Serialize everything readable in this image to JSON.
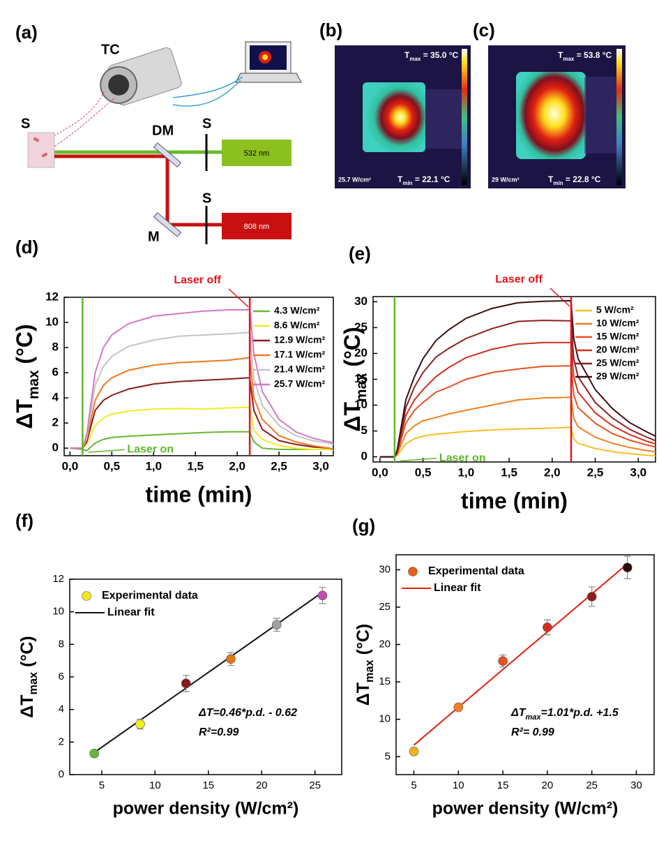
{
  "panel_labels": [
    "(a)",
    "(b)",
    "(c)",
    "(d)",
    "(e)",
    "(f)",
    "(g)"
  ],
  "setup": {
    "camera": "TC",
    "sample": "S",
    "dichroic": "DM",
    "shutter_green": "S",
    "laser_green": "532 nm",
    "shutter_red": "S",
    "mirror": "M",
    "laser_red": "808 nm"
  },
  "thermal_images": [
    {
      "tmax": [
        "T",
        "max",
        " = 35.0 °C"
      ],
      "tmin": [
        "T",
        "min",
        " = 22.1 °C"
      ],
      "power": "25.7 W/cm²"
    },
    {
      "tmax": [
        "T",
        "max",
        " = 53.8 °C"
      ],
      "tmin": [
        "T",
        "min",
        " = 22.8 °C"
      ],
      "power": "29 W/cm²"
    }
  ],
  "chart_data": [
    {
      "type": "line",
      "xlabel": "time (min)",
      "ylabel": [
        "ΔT",
        "max",
        " (°C)"
      ],
      "xlim": [
        -0.07,
        3.15
      ],
      "ylim": [
        -0.6,
        12
      ],
      "xticks": [
        {
          "value": 0,
          "label": "0,0"
        },
        {
          "value": 0.5,
          "label": "0,5"
        },
        {
          "value": 1,
          "label": "1,0"
        },
        {
          "value": 1.5,
          "label": "1,5"
        },
        {
          "value": 2,
          "label": "2,0"
        },
        {
          "value": 2.5,
          "label": "2,5"
        },
        {
          "value": 3,
          "label": "3,0"
        }
      ],
      "yticks": [
        0,
        2,
        4,
        6,
        8,
        10,
        12
      ],
      "legend": "upper right",
      "x": [
        0,
        0.15,
        0.2,
        0.3,
        0.4,
        0.5,
        0.7,
        1.0,
        1.3,
        1.6,
        1.9,
        2.15,
        2.2,
        2.3,
        2.5,
        2.7,
        2.9,
        3.1,
        3.15
      ],
      "series": [
        {
          "name": "4.3 W/cm²",
          "color": "#66b834",
          "values": [
            0,
            -0.1,
            -0.2,
            0.4,
            0.7,
            0.85,
            0.95,
            1.05,
            1.15,
            1.25,
            1.3,
            1.3,
            0.5,
            0.0,
            -0.1,
            -0.1,
            -0.1,
            -0.1,
            -0.15
          ]
        },
        {
          "name": "8.6 W/cm²",
          "color": "#eeee22",
          "values": [
            0,
            0,
            0.3,
            1.8,
            2.4,
            2.7,
            2.95,
            3.1,
            3.15,
            3.1,
            3.2,
            3.25,
            1.4,
            0.7,
            0.2,
            0.0,
            -0.1,
            -0.1,
            -0.15
          ]
        },
        {
          "name": "12.9 W/cm²",
          "color": "#8b1a1a",
          "values": [
            0,
            0,
            0.5,
            3.0,
            3.8,
            4.2,
            4.7,
            5.1,
            5.3,
            5.4,
            5.5,
            5.6,
            3.0,
            1.5,
            0.6,
            0.3,
            0.1,
            0,
            -0.1
          ]
        },
        {
          "name": "17.1 W/cm²",
          "color": "#f07820",
          "values": [
            0,
            0,
            0.7,
            3.8,
            5.0,
            5.6,
            6.2,
            6.6,
            6.8,
            6.9,
            7.0,
            7.2,
            4.0,
            2.3,
            1.0,
            0.5,
            0.2,
            0.0,
            -0.1
          ]
        },
        {
          "name": "21.4 W/cm²",
          "color": "#c4c4c4",
          "values": [
            0,
            0,
            0.9,
            5.0,
            6.5,
            7.3,
            8.1,
            8.6,
            8.9,
            9.0,
            9.1,
            9.2,
            5.5,
            3.4,
            1.8,
            1.0,
            0.6,
            0.4,
            0.3
          ]
        },
        {
          "name": "25.7 W/cm²",
          "color": "#d478c4",
          "values": [
            0,
            0,
            1.1,
            6.0,
            8.0,
            9.0,
            9.9,
            10.5,
            10.7,
            10.9,
            11.0,
            11.0,
            7.5,
            4.5,
            2.3,
            1.3,
            0.8,
            0.5,
            0.4
          ]
        }
      ],
      "markers": [
        {
          "x": 0.15,
          "label": "Laser on",
          "color": "#5cb82c"
        },
        {
          "x": 2.15,
          "label": "Laser off",
          "color": "#e8141c"
        }
      ]
    },
    {
      "type": "line",
      "xlabel": "time (min)",
      "ylabel": [
        "ΔT",
        "max",
        " (°C)"
      ],
      "xlim": [
        -0.08,
        3.2
      ],
      "ylim": [
        -1,
        31
      ],
      "xticks": [
        {
          "value": 0,
          "label": "0,0"
        },
        {
          "value": 0.5,
          "label": "0,5"
        },
        {
          "value": 1,
          "label": "1,0"
        },
        {
          "value": 1.5,
          "label": "1,5"
        },
        {
          "value": 2,
          "label": "2,0"
        },
        {
          "value": 2.5,
          "label": "2,5"
        },
        {
          "value": 3,
          "label": "3,0"
        }
      ],
      "yticks": [
        0,
        5,
        10,
        15,
        20,
        25,
        30
      ],
      "legend": "upper right",
      "x": [
        0,
        0.17,
        0.2,
        0.3,
        0.4,
        0.5,
        0.65,
        0.8,
        1.0,
        1.3,
        1.6,
        1.9,
        2.2,
        2.22,
        2.25,
        2.3,
        2.5,
        2.7,
        2.9,
        3.1,
        3.2
      ],
      "series": [
        {
          "name": "5 W/cm²",
          "color": "#f5c020",
          "values": [
            0,
            0,
            0.3,
            2.5,
            3.5,
            4.0,
            4.4,
            4.6,
            4.9,
            5.2,
            5.4,
            5.5,
            5.7,
            5.7,
            3.5,
            2.6,
            1.6,
            1.0,
            0.6,
            0.3,
            0.2
          ]
        },
        {
          "name": "10 W/cm²",
          "color": "#f08020",
          "values": [
            0,
            0,
            0.5,
            4.5,
            6.0,
            7.0,
            7.6,
            8.3,
            9.0,
            10.0,
            11.0,
            11.4,
            11.5,
            11.5,
            7.5,
            5.8,
            3.8,
            2.6,
            1.8,
            1.2,
            1.0
          ]
        },
        {
          "name": "15 W/cm²",
          "color": "#e85020",
          "values": [
            0,
            0,
            0.7,
            6.5,
            9.0,
            10.5,
            12.5,
            13.5,
            15.0,
            16.3,
            17.0,
            17.5,
            17.6,
            17.6,
            12.0,
            9.5,
            6.5,
            4.5,
            3.2,
            2.3,
            1.9
          ]
        },
        {
          "name": "20 W/cm²",
          "color": "#d03020",
          "values": [
            0,
            0,
            0.9,
            8.0,
            11.0,
            13.0,
            15.5,
            17.3,
            19.2,
            20.8,
            21.8,
            22.1,
            22.1,
            22.1,
            15.5,
            12.5,
            8.5,
            6.0,
            4.3,
            3.0,
            2.5
          ]
        },
        {
          "name": "25 W/cm²",
          "color": "#8b2020",
          "values": [
            0,
            0,
            1.1,
            9.5,
            13.5,
            16.3,
            19.3,
            21.0,
            22.9,
            24.8,
            26.2,
            26.4,
            26.3,
            26.3,
            19.0,
            15.5,
            10.5,
            7.5,
            5.3,
            3.8,
            3.1
          ]
        },
        {
          "name": "29 W/cm²",
          "color": "#3a1010",
          "values": [
            0,
            0,
            1.3,
            11.0,
            15.5,
            19.0,
            22.5,
            24.6,
            26.8,
            28.7,
            29.8,
            30.1,
            30.2,
            30.0,
            23.0,
            19.0,
            13.0,
            9.3,
            6.6,
            4.8,
            4.0
          ]
        }
      ],
      "markers": [
        {
          "x": 0.17,
          "label": "Laser on",
          "color": "#5cb82c"
        },
        {
          "x": 2.22,
          "label": "Laser off",
          "color": "#e8141c"
        }
      ]
    },
    {
      "type": "scatter",
      "xlabel": "power density (W/cm²)",
      "ylabel": [
        "ΔT",
        "max",
        " (°C)"
      ],
      "xlim": [
        2,
        27.5
      ],
      "ylim": [
        0,
        12
      ],
      "xticks": [
        5,
        10,
        15,
        20,
        25
      ],
      "yticks": [
        0,
        2,
        4,
        6,
        8,
        10,
        12
      ],
      "legend": "upper left",
      "series": [
        {
          "name": "Experimental data",
          "color": "#f2e81c",
          "x": [
            4.3,
            8.6,
            12.9,
            17.1,
            21.4,
            25.7
          ],
          "values": [
            1.3,
            3.1,
            5.6,
            7.1,
            9.2,
            11.0
          ],
          "errors": [
            0.1,
            0.3,
            0.5,
            0.4,
            0.4,
            0.5
          ],
          "point_colors": [
            "#66b834",
            "#eeee22",
            "#8b1a1a",
            "#e07818",
            "#a0a0a0",
            "#c050b0"
          ]
        }
      ],
      "fit": {
        "name": "Linear fit",
        "color": "#111111",
        "x": [
          4.3,
          25.7
        ],
        "values": [
          1.36,
          11.2
        ]
      },
      "annotations": [
        [
          "ΔT=0.46*p.d. - 0.62"
        ],
        [
          "R²=0.99"
        ]
      ]
    },
    {
      "type": "scatter",
      "xlabel": "power density (W/cm²)",
      "ylabel": [
        "ΔT",
        "max",
        " (°C)"
      ],
      "xlim": [
        3,
        32
      ],
      "ylim": [
        2.6,
        32
      ],
      "xticks": [
        5,
        10,
        15,
        20,
        25,
        30
      ],
      "yticks": [
        5,
        10,
        15,
        20,
        25,
        30
      ],
      "legend": "upper left",
      "series": [
        {
          "name": "Experimental data",
          "color": "#e8601c",
          "x": [
            5,
            10,
            15,
            20,
            25,
            29
          ],
          "values": [
            5.7,
            11.6,
            17.8,
            22.3,
            26.4,
            30.3
          ],
          "errors": [
            0.4,
            0.4,
            0.8,
            1.0,
            1.3,
            1.5
          ],
          "point_colors": [
            "#f5b020",
            "#f08020",
            "#e85020",
            "#d03020",
            "#8b2020",
            "#2a0a0a"
          ]
        }
      ],
      "fit": {
        "name": "Linear fit",
        "color": "#e02010",
        "x": [
          5,
          29
        ],
        "values": [
          6.55,
          30.8
        ]
      },
      "annotations": [
        [
          "ΔT",
          "max",
          "=1.01*p.d. +1.5"
        ],
        [
          "R²= 0.99"
        ]
      ]
    }
  ]
}
